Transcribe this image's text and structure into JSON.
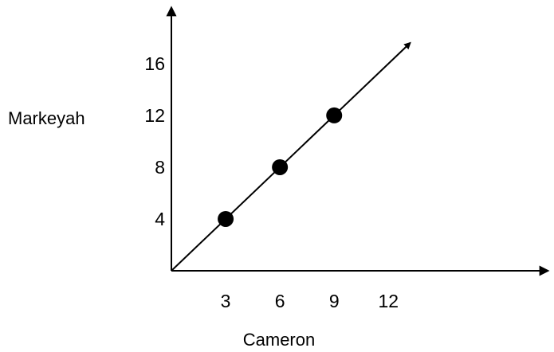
{
  "chart_data": {
    "type": "scatter",
    "title": "",
    "xlabel": "Cameron",
    "ylabel": "Markeyah",
    "xlim": [
      0,
      20.8
    ],
    "ylim": [
      0,
      20.3
    ],
    "x_ticks": [
      3,
      6,
      9,
      12
    ],
    "y_ticks": [
      4,
      8,
      12,
      16
    ],
    "x_tick_labels": [
      "3",
      "6",
      "9",
      "12"
    ],
    "y_tick_labels": [
      "4",
      "8",
      "12",
      "16"
    ],
    "grid": false,
    "points": [
      {
        "x": 3,
        "y": 4
      },
      {
        "x": 6,
        "y": 8
      },
      {
        "x": 9,
        "y": 12
      }
    ],
    "line": {
      "from": [
        0,
        0
      ],
      "to": [
        13.2,
        17.6
      ],
      "arrow": true
    },
    "axis_arrows": true,
    "colors": {
      "ink": "#000000",
      "background": "#ffffff"
    }
  }
}
